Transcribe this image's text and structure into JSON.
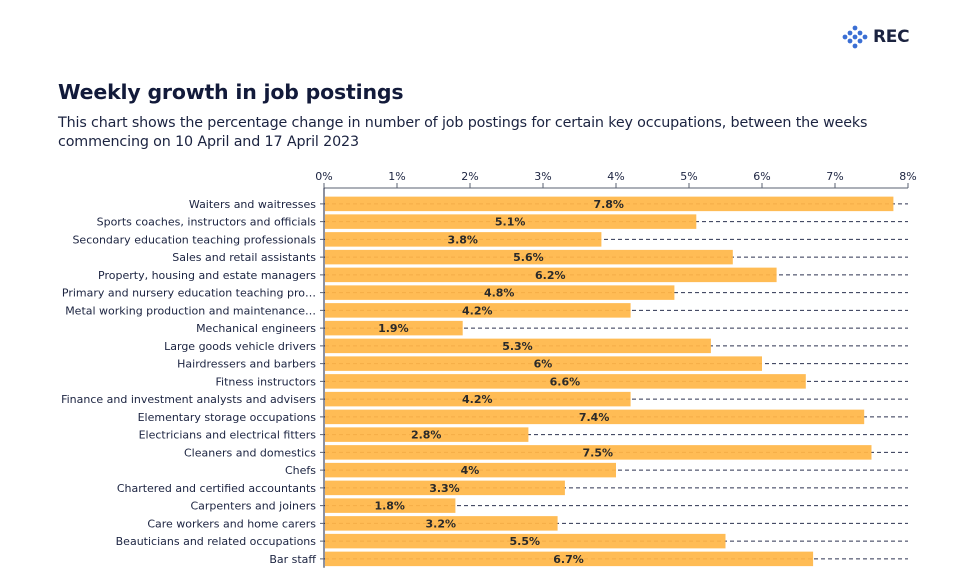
{
  "brand": {
    "logo_icon": "rec-diamond-dots-icon",
    "name": "REC",
    "color": "#3b6fd4",
    "text_color": "#1b2340"
  },
  "header": {
    "title": "Weekly growth in job postings",
    "subtitle": "This chart shows the percentage change in number of job postings for certain key occupations, between the weeks commencing on 10 April and 17 April 2023"
  },
  "chart_data": {
    "type": "bar",
    "orientation": "horizontal",
    "title": "Weekly growth in job postings",
    "xlabel": "",
    "ylabel": "",
    "xlim": [
      0,
      8
    ],
    "x_ticks": [
      "0%",
      "1%",
      "2%",
      "3%",
      "4%",
      "5%",
      "6%",
      "7%",
      "8%"
    ],
    "x_axis_position": "top",
    "grid": "horizontal dashed row guides",
    "legend": "none",
    "bar_color": "#ffbc55",
    "categories": [
      "Waiters and waitresses",
      "Sports coaches, instructors and officials",
      "Secondary education teaching professionals",
      "Sales and retail assistants",
      "Property, housing and estate managers",
      "Primary and nursery education teaching pro…",
      "Metal working production and maintenance…",
      "Mechanical engineers",
      "Large goods vehicle drivers",
      "Hairdressers and barbers",
      "Fitness instructors",
      "Finance and investment analysts and advisers",
      "Elementary storage occupations",
      "Electricians and electrical fitters",
      "Cleaners and domestics",
      "Chefs",
      "Chartered and certified accountants",
      "Carpenters and joiners",
      "Care workers and home carers",
      "Beauticians and related occupations",
      "Bar staff"
    ],
    "values": [
      7.8,
      5.1,
      3.8,
      5.6,
      6.2,
      4.8,
      4.2,
      1.9,
      5.3,
      6.0,
      6.6,
      4.2,
      7.4,
      2.8,
      7.5,
      4.0,
      3.3,
      1.8,
      3.2,
      5.5,
      6.7
    ],
    "data_labels": [
      "7.8%",
      "5.1%",
      "3.8%",
      "5.6%",
      "6.2%",
      "4.8%",
      "4.2%",
      "1.9%",
      "5.3%",
      "6%",
      "6.6%",
      "4.2%",
      "7.4%",
      "2.8%",
      "7.5%",
      "4%",
      "3.3%",
      "1.8%",
      "3.2%",
      "5.5%",
      "6.7%"
    ]
  }
}
